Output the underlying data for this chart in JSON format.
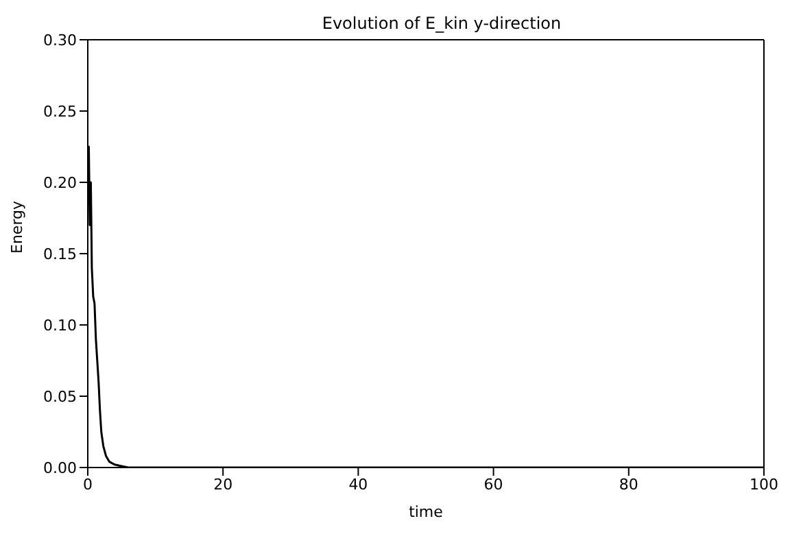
{
  "chart_data": {
    "type": "line",
    "title": "Evolution of E_kin y-direction",
    "xlabel": "time",
    "ylabel": "Energy",
    "x": [
      0,
      0.15,
      0.3,
      0.45,
      0.6,
      0.8,
      1.0,
      1.2,
      1.4,
      1.6,
      1.8,
      2.0,
      2.3,
      2.7,
      3.2,
      4,
      5,
      6,
      10,
      20,
      40,
      60,
      80,
      100
    ],
    "series": [
      {
        "color": "#000000",
        "values": [
          0.19,
          0.225,
          0.17,
          0.2,
          0.14,
          0.12,
          0.115,
          0.09,
          0.075,
          0.06,
          0.04,
          0.025,
          0.015,
          0.008,
          0.004,
          0.002,
          0.001,
          0,
          0,
          0,
          0,
          0,
          0,
          0
        ]
      }
    ],
    "xlim": [
      0,
      100
    ],
    "xticks": [
      0,
      20,
      40,
      60,
      80,
      100
    ],
    "ylim": [
      0,
      0.3
    ],
    "yticks": [
      {
        "value": 0,
        "label": "0.00"
      },
      {
        "value": 0.05,
        "label": "0.05"
      },
      {
        "value": 0.1,
        "label": "0.10"
      },
      {
        "value": 0.15,
        "label": "0.15"
      },
      {
        "value": 0.2,
        "label": "0.20"
      },
      {
        "value": 0.25,
        "label": "0.25"
      },
      {
        "value": 0.3,
        "label": "0.30"
      }
    ],
    "grid": false,
    "legend": false,
    "marker": "none",
    "line_style": "solid"
  }
}
